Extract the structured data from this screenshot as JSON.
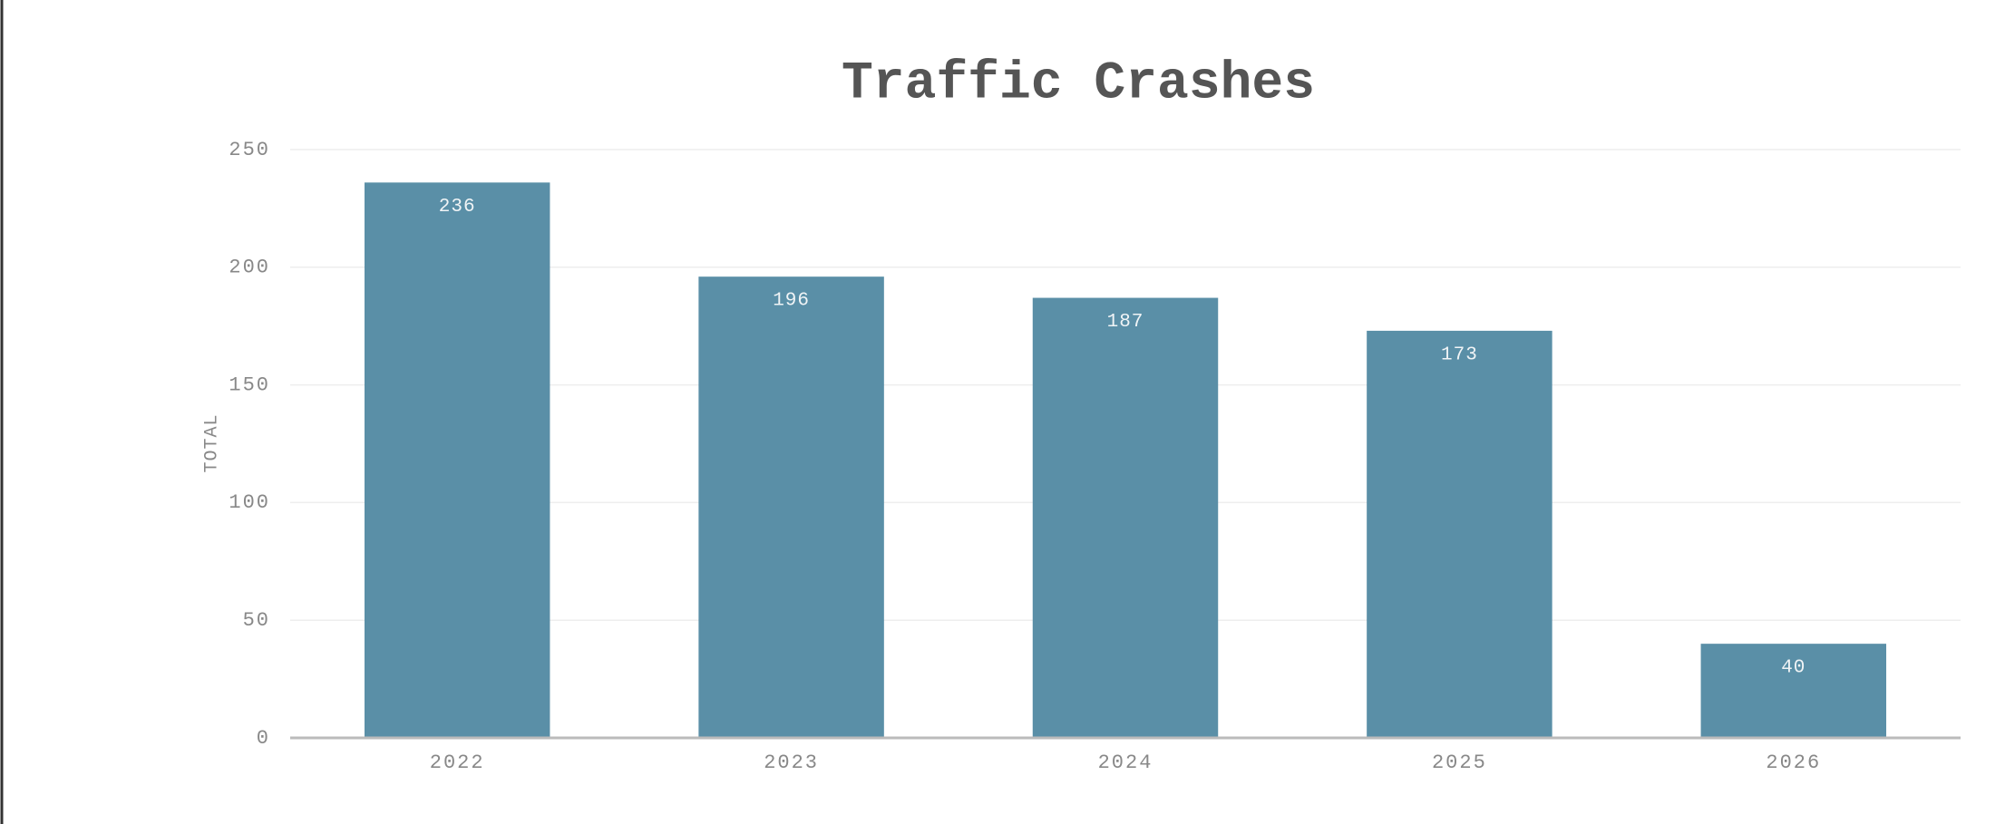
{
  "chart_data": {
    "type": "bar",
    "title": "Traffic Crashes",
    "y_label": "TOTAL",
    "categories": [
      "2022",
      "2023",
      "2024",
      "2025",
      "2026"
    ],
    "values": [
      236,
      196,
      187,
      173,
      40
    ],
    "color": "#5a8fa7",
    "ylim": [
      0,
      250
    ],
    "yticks": [
      0,
      50,
      100,
      150,
      200,
      250
    ],
    "grid": true
  }
}
